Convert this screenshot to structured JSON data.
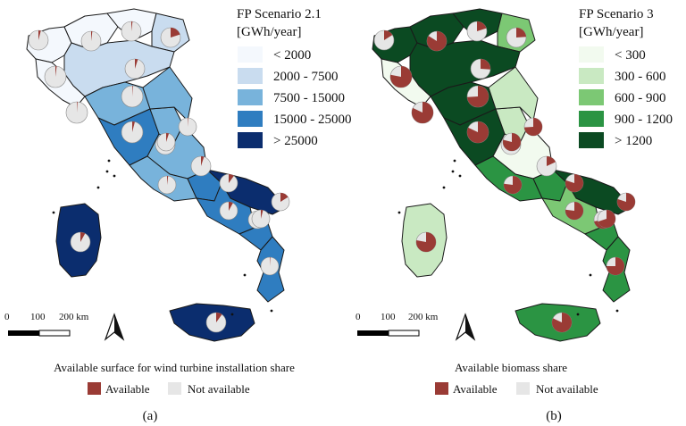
{
  "panel_a": {
    "legend_title_1": "FP Scenario 2.1",
    "legend_title_2": "[GWh/year]",
    "classes": [
      {
        "label": "< 2000",
        "color": "#f4f8fd"
      },
      {
        "label": "2000 - 7500",
        "color": "#c9dcef"
      },
      {
        "label": "7500 - 15000",
        "color": "#78b3db"
      },
      {
        "label": "15000 - 25000",
        "color": "#2f7dc0"
      },
      {
        "label": "> 25000",
        "color": "#0b2d6e"
      }
    ],
    "scale_ticks": [
      "0",
      "100",
      "200 km"
    ],
    "pie_legend_title": "Available surface for wind turbine installation share",
    "pie_available": "Available",
    "pie_not_available": "Not available",
    "caption": "(a)"
  },
  "panel_b": {
    "legend_title_1": "FP Scenario 3",
    "legend_title_2": "[GWh/year]",
    "classes": [
      {
        "label": "< 300",
        "color": "#f2faef"
      },
      {
        "label": "300 - 600",
        "color": "#c9e9c2"
      },
      {
        "label": "600 - 900",
        "color": "#7cc874"
      },
      {
        "label": "900 - 1200",
        "color": "#2b9443"
      },
      {
        "label": "> 1200",
        "color": "#0b4a22"
      }
    ],
    "scale_ticks": [
      "0",
      "100",
      "200 km"
    ],
    "pie_legend_title": "Available biomass share",
    "pie_available": "Available",
    "pie_not_available": "Not available",
    "caption": "(b)"
  },
  "colors": {
    "available": "#9a3b35",
    "not_available": "#e6e6e6",
    "border": "#1a1a1a"
  }
}
